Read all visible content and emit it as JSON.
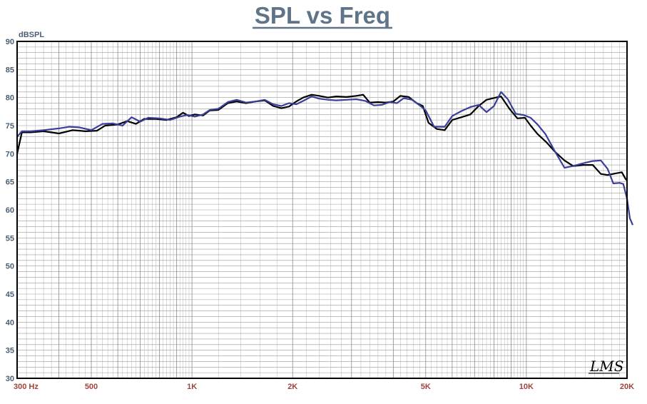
{
  "chart_data": {
    "type": "line",
    "title": "SPL vs Freq",
    "ylabel": "dBSPL",
    "xscale": "log",
    "xlim": [
      300,
      20000
    ],
    "ylim": [
      30,
      90
    ],
    "grid": true,
    "y_ticks": [
      "30",
      "35",
      "40",
      "45",
      "50",
      "55",
      "60",
      "65",
      "70",
      "75",
      "80",
      "85",
      "90"
    ],
    "x_ticks": [
      {
        "value": 300,
        "label": "300  Hz"
      },
      {
        "value": 500,
        "label": "500"
      },
      {
        "value": 1000,
        "label": "1K"
      },
      {
        "value": 2000,
        "label": "2K"
      },
      {
        "value": 5000,
        "label": "5K"
      },
      {
        "value": 10000,
        "label": "10K"
      },
      {
        "value": 20000,
        "label": "20K"
      }
    ],
    "series": [
      {
        "color": "#000000",
        "points": [
          [
            300,
            70
          ],
          [
            310,
            73.8
          ],
          [
            330,
            73.8
          ],
          [
            360,
            74.0
          ],
          [
            400,
            73.6
          ],
          [
            440,
            74.2
          ],
          [
            480,
            74.0
          ],
          [
            520,
            74.1
          ],
          [
            550,
            75.0
          ],
          [
            600,
            75.2
          ],
          [
            640,
            75.8
          ],
          [
            680,
            75.3
          ],
          [
            720,
            76.2
          ],
          [
            780,
            76.2
          ],
          [
            840,
            76.0
          ],
          [
            900,
            76.5
          ],
          [
            940,
            77.3
          ],
          [
            980,
            76.7
          ],
          [
            1020,
            77.0
          ],
          [
            1080,
            76.8
          ],
          [
            1130,
            77.7
          ],
          [
            1200,
            77.8
          ],
          [
            1280,
            79.0
          ],
          [
            1360,
            79.3
          ],
          [
            1450,
            79.0
          ],
          [
            1550,
            79.3
          ],
          [
            1650,
            79.5
          ],
          [
            1750,
            78.5
          ],
          [
            1850,
            78.1
          ],
          [
            1950,
            78.4
          ],
          [
            2050,
            79.3
          ],
          [
            2150,
            80.0
          ],
          [
            2280,
            80.5
          ],
          [
            2400,
            80.3
          ],
          [
            2550,
            80.0
          ],
          [
            2700,
            80.2
          ],
          [
            2900,
            80.1
          ],
          [
            3100,
            80.3
          ],
          [
            3250,
            80.5
          ],
          [
            3400,
            79.1
          ],
          [
            3600,
            79.2
          ],
          [
            3800,
            79.1
          ],
          [
            4000,
            79.3
          ],
          [
            4200,
            80.3
          ],
          [
            4450,
            80.1
          ],
          [
            4700,
            79.0
          ],
          [
            4900,
            78.5
          ],
          [
            5100,
            75.5
          ],
          [
            5400,
            74.4
          ],
          [
            5700,
            74.2
          ],
          [
            6000,
            76.0
          ],
          [
            6400,
            76.5
          ],
          [
            6800,
            77.0
          ],
          [
            7200,
            78.5
          ],
          [
            7600,
            79.6
          ],
          [
            8100,
            80.0
          ],
          [
            8400,
            80.2
          ],
          [
            8900,
            78.0
          ],
          [
            9400,
            76.3
          ],
          [
            9900,
            76.4
          ],
          [
            10300,
            75.0
          ],
          [
            10800,
            73.5
          ],
          [
            11500,
            72.0
          ],
          [
            12200,
            70.3
          ],
          [
            13000,
            68.8
          ],
          [
            13800,
            67.8
          ],
          [
            14800,
            68.0
          ],
          [
            15800,
            68.0
          ],
          [
            16700,
            66.4
          ],
          [
            17500,
            66.2
          ],
          [
            18500,
            66.5
          ],
          [
            19300,
            66.7
          ],
          [
            19800,
            65.5
          ],
          [
            20000,
            65.2
          ]
        ]
      },
      {
        "color": "#3a3f9a",
        "points": [
          [
            300,
            73.0
          ],
          [
            310,
            74.0
          ],
          [
            330,
            74.0
          ],
          [
            360,
            74.2
          ],
          [
            400,
            74.5
          ],
          [
            430,
            74.8
          ],
          [
            460,
            74.7
          ],
          [
            500,
            74.2
          ],
          [
            540,
            75.3
          ],
          [
            580,
            75.4
          ],
          [
            620,
            75.0
          ],
          [
            660,
            76.5
          ],
          [
            700,
            75.7
          ],
          [
            740,
            76.4
          ],
          [
            800,
            76.3
          ],
          [
            860,
            76.0
          ],
          [
            920,
            76.6
          ],
          [
            970,
            76.9
          ],
          [
            1020,
            76.6
          ],
          [
            1080,
            77.0
          ],
          [
            1130,
            77.8
          ],
          [
            1200,
            78.0
          ],
          [
            1280,
            79.2
          ],
          [
            1360,
            79.6
          ],
          [
            1450,
            79.1
          ],
          [
            1550,
            79.3
          ],
          [
            1650,
            79.6
          ],
          [
            1750,
            78.8
          ],
          [
            1850,
            78.5
          ],
          [
            1950,
            79.0
          ],
          [
            2050,
            78.8
          ],
          [
            2150,
            79.4
          ],
          [
            2280,
            80.2
          ],
          [
            2400,
            79.8
          ],
          [
            2550,
            79.6
          ],
          [
            2700,
            79.5
          ],
          [
            2900,
            79.6
          ],
          [
            3100,
            79.7
          ],
          [
            3300,
            79.4
          ],
          [
            3500,
            78.6
          ],
          [
            3700,
            78.7
          ],
          [
            3900,
            79.2
          ],
          [
            4100,
            79.0
          ],
          [
            4300,
            79.9
          ],
          [
            4550,
            79.6
          ],
          [
            4800,
            78.6
          ],
          [
            5000,
            77.7
          ],
          [
            5300,
            74.8
          ],
          [
            5700,
            74.8
          ],
          [
            6000,
            76.7
          ],
          [
            6400,
            77.6
          ],
          [
            6800,
            78.3
          ],
          [
            7200,
            78.7
          ],
          [
            7600,
            77.4
          ],
          [
            8000,
            78.5
          ],
          [
            8400,
            81.0
          ],
          [
            8800,
            79.7
          ],
          [
            9300,
            77.1
          ],
          [
            9800,
            76.9
          ],
          [
            10300,
            76.4
          ],
          [
            10800,
            75.2
          ],
          [
            11400,
            73.5
          ],
          [
            12200,
            70.3
          ],
          [
            13000,
            67.5
          ],
          [
            13800,
            67.8
          ],
          [
            14800,
            68.3
          ],
          [
            15800,
            68.7
          ],
          [
            16700,
            68.8
          ],
          [
            17500,
            67.3
          ],
          [
            18200,
            64.7
          ],
          [
            19000,
            64.8
          ],
          [
            19500,
            64.6
          ],
          [
            20000,
            62.0
          ],
          [
            20400,
            58.5
          ],
          [
            20800,
            57.3
          ]
        ]
      }
    ]
  },
  "logo": "LMS"
}
